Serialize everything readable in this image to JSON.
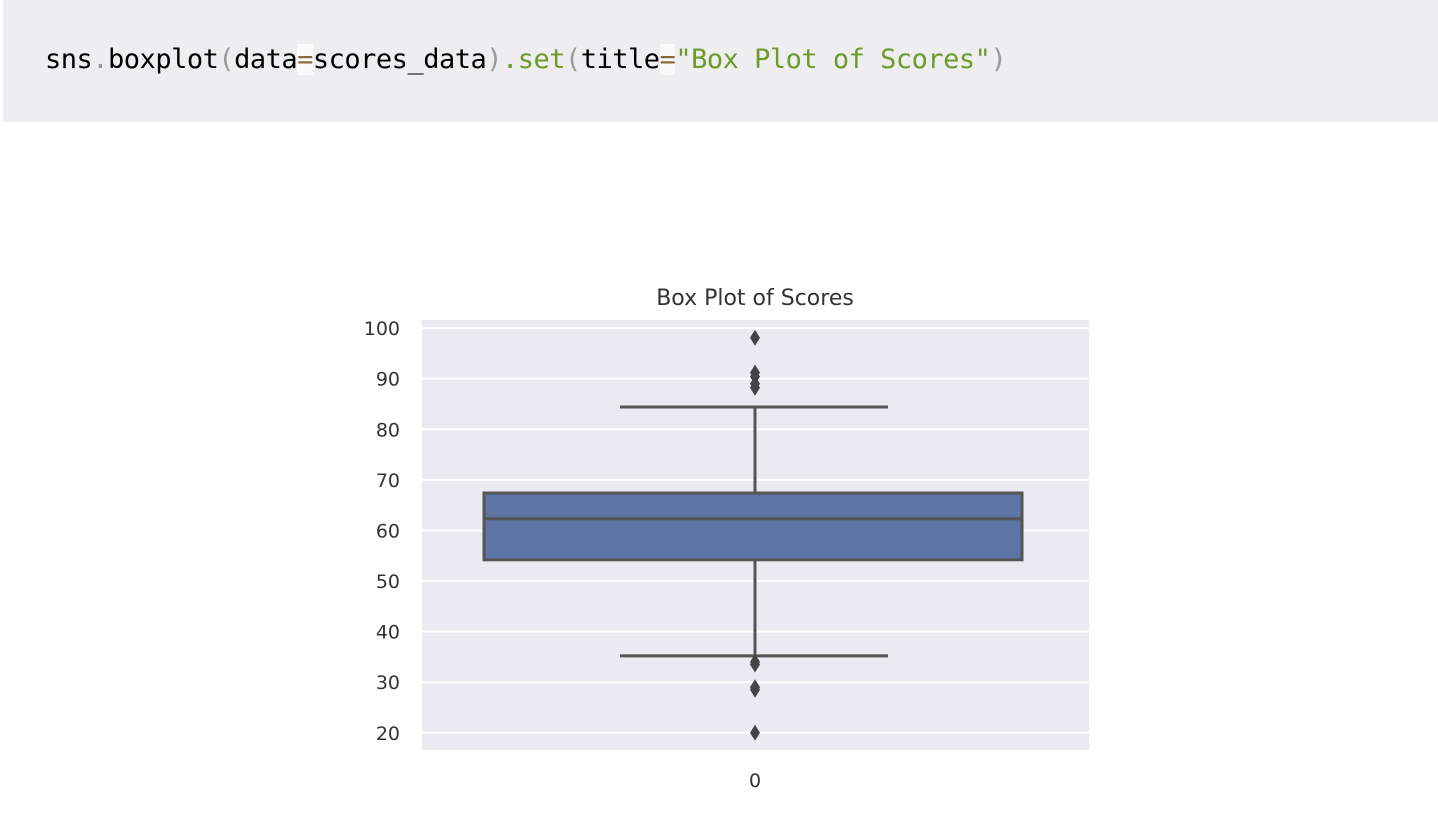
{
  "code": {
    "t1": "sns",
    "t2": ".",
    "t3": "boxplot",
    "t4": "(",
    "t5": "data",
    "t6": "=",
    "t7": "scores_data",
    "t8": ")",
    "t9": ".set",
    "t10": "(",
    "t11": "title",
    "t12": "=",
    "t13": "\"Box Plot of Scores\"",
    "t14": ")"
  },
  "chart_data": {
    "type": "box",
    "title": "Box Plot of Scores",
    "xlabel": "",
    "ylabel": "",
    "categories": [
      "0"
    ],
    "ylim": [
      16.6,
      101.6
    ],
    "yticks": [
      20,
      30,
      40,
      50,
      60,
      70,
      80,
      90,
      100
    ],
    "grid": true,
    "colors": {
      "box": "#5e74a4",
      "line": "#555555",
      "background": "#eaeaf2"
    },
    "boxes": [
      {
        "category": "0",
        "whisker_low": 35.2,
        "q1": 54.2,
        "median": 62.3,
        "q3": 67.4,
        "whisker_high": 84.4,
        "outliers": [
          98.1,
          91.2,
          90.4,
          89.0,
          88.2,
          34.0,
          33.5,
          29.0,
          28.5,
          20.0
        ]
      }
    ]
  }
}
